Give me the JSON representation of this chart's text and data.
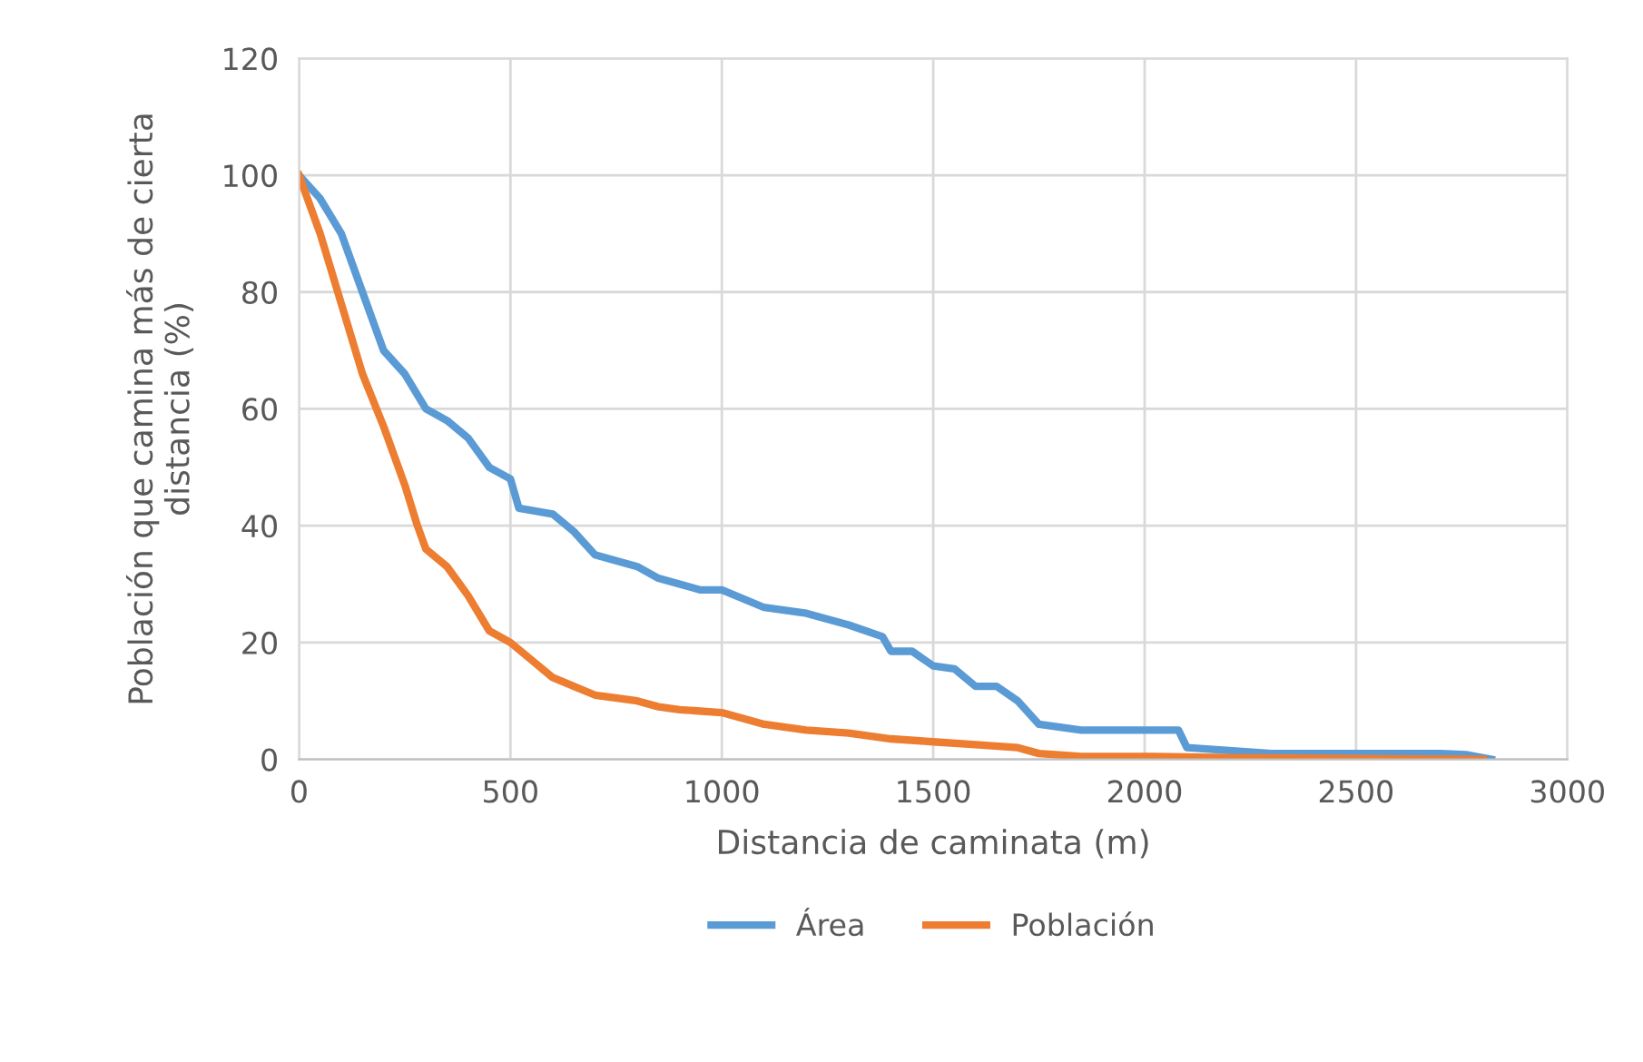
{
  "chart_data": {
    "type": "line",
    "xlabel": "Distancia de caminata (m)",
    "ylabel": "Población que camina más de cierta\ndistancia (%)",
    "xlim": [
      0,
      3000
    ],
    "xticks": [
      0,
      500,
      1000,
      1500,
      2000,
      2500,
      3000
    ],
    "ylim": [
      0,
      120
    ],
    "yticks": [
      0,
      20,
      40,
      60,
      80,
      100,
      120
    ],
    "grid": true,
    "legend": "bottom",
    "series": [
      {
        "name": "Área",
        "color": "#5b9bd5",
        "x": [
          0,
          50,
          100,
          150,
          180,
          200,
          250,
          300,
          350,
          400,
          450,
          500,
          520,
          600,
          650,
          700,
          800,
          850,
          900,
          950,
          1000,
          1100,
          1200,
          1300,
          1380,
          1400,
          1450,
          1500,
          1550,
          1600,
          1650,
          1700,
          1750,
          1800,
          1850,
          2080,
          2100,
          2200,
          2300,
          2700,
          2760,
          2820
        ],
        "values": [
          100,
          96,
          90,
          80,
          74,
          70,
          66,
          60,
          58,
          55,
          50,
          48,
          43,
          42,
          39,
          35,
          33,
          31,
          30,
          29,
          29,
          26,
          25,
          23,
          21,
          18.5,
          18.5,
          16,
          15.5,
          12.5,
          12.5,
          10,
          6,
          5.5,
          5,
          5,
          2,
          1.5,
          1,
          1,
          0.8,
          0
        ]
      },
      {
        "name": "Población",
        "color": "#ed7d31",
        "x": [
          0,
          50,
          100,
          150,
          200,
          250,
          280,
          300,
          350,
          400,
          450,
          500,
          550,
          600,
          700,
          800,
          850,
          900,
          1000,
          1100,
          1200,
          1300,
          1400,
          1500,
          1600,
          1700,
          1750,
          1850,
          2000,
          2200,
          2800
        ],
        "values": [
          100,
          90,
          78,
          66,
          57,
          47,
          40,
          36,
          33,
          28,
          22,
          20,
          17,
          14,
          11,
          10,
          9,
          8.5,
          8,
          6,
          5,
          4.5,
          3.5,
          3,
          2.5,
          2,
          1,
          0.5,
          0.5,
          0.3,
          0
        ]
      }
    ]
  }
}
